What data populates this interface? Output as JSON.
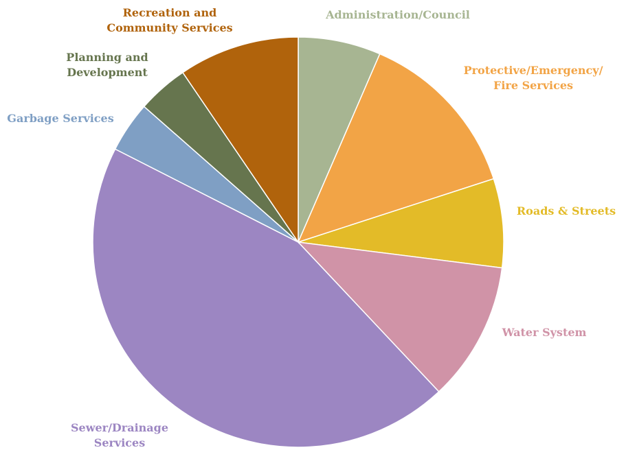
{
  "chart_data": {
    "type": "pie",
    "title": "",
    "start_angle_deg": 0,
    "direction": "clockwise",
    "legend": "none",
    "slices": [
      {
        "name": "Administration/Council",
        "value": 6.5,
        "color": "#a7b592"
      },
      {
        "name": "Protective/Emergency/ Fire Services",
        "value": 13.5,
        "color": "#f2a446"
      },
      {
        "name": "Roads & Streets",
        "value": 7.0,
        "color": "#e3bb28"
      },
      {
        "name": "Water System",
        "value": 11.0,
        "color": "#d093a7"
      },
      {
        "name": "Sewer/Drainage Services",
        "value": 44.5,
        "color": "#9c86c2"
      },
      {
        "name": "Garbage Services",
        "value": 4.0,
        "color": "#7f9fc4"
      },
      {
        "name": "Planning and Development",
        "value": 4.0,
        "color": "#66754e"
      },
      {
        "name": "Recreation and Community Services",
        "value": 9.5,
        "color": "#b0630c"
      }
    ],
    "labels": [
      {
        "lines": [
          "Administration/Council"
        ],
        "color": "#a7b592"
      },
      {
        "lines": [
          "Protective/Emergency/",
          "Fire Services"
        ],
        "color": "#f2a446"
      },
      {
        "lines": [
          "Roads & Streets"
        ],
        "color": "#e3bb28"
      },
      {
        "lines": [
          "Water System"
        ],
        "color": "#d093a7"
      },
      {
        "lines": [
          "Sewer/Drainage",
          "Services"
        ],
        "color": "#9c86c2"
      },
      {
        "lines": [
          "Garbage Services"
        ],
        "color": "#7f9fc4"
      },
      {
        "lines": [
          "Planning and",
          "Development"
        ],
        "color": "#66754e"
      },
      {
        "lines": [
          "Recreation and",
          "Community Services"
        ],
        "color": "#b0630c"
      }
    ]
  }
}
